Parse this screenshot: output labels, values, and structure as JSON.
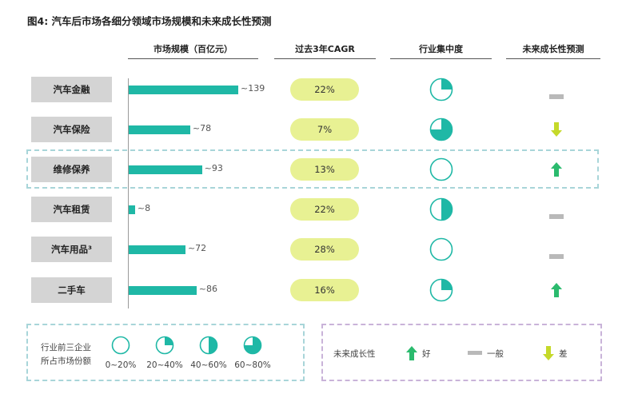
{
  "title": "图4: 汽车后市场各细分领域市场规模和未来成长性预测",
  "headers": {
    "market_size": "市场规模（百亿元）",
    "cagr": "过去3年CAGR",
    "concentration": "行业集中度",
    "growth": "未来成长性预测"
  },
  "colors": {
    "bar": "#1fb8a6",
    "cagr_pill": "#e8f193",
    "category_box": "#d4d4d4",
    "arrow_good": "#2bbb6e",
    "arrow_bad": "#c5d92a",
    "dash_neutral": "#b9b9b9"
  },
  "legend": {
    "concentration_title_line1": "行业前三企业",
    "concentration_title_line2": "所占市场份额",
    "concentration_levels": [
      "0~20%",
      "20~40%",
      "40~60%",
      "60~80%"
    ],
    "growth_title": "未来成长性",
    "growth_good": "好",
    "growth_neutral": "一般",
    "growth_bad": "差"
  },
  "chart_data": {
    "type": "table",
    "rows": [
      {
        "category": "汽车金融",
        "market_size": 139,
        "market_size_label": "~139",
        "cagr": "22%",
        "concentration": "20~40%",
        "growth": "一般"
      },
      {
        "category": "汽车保险",
        "market_size": 78,
        "market_size_label": "~78",
        "cagr": "7%",
        "concentration": "60~80%",
        "growth": "差"
      },
      {
        "category": "维修保养",
        "market_size": 93,
        "market_size_label": "~93",
        "cagr": "13%",
        "concentration": "0~20%",
        "growth": "好"
      },
      {
        "category": "汽车租赁",
        "market_size": 8,
        "market_size_label": "~8",
        "cagr": "22%",
        "concentration": "40~60%",
        "growth": "一般"
      },
      {
        "category": "汽车用品³",
        "market_size": 72,
        "market_size_label": "~72",
        "cagr": "28%",
        "concentration": "0~20%",
        "growth": "一般"
      },
      {
        "category": "二手车",
        "market_size": 86,
        "market_size_label": "~86",
        "cagr": "16%",
        "concentration": "20~40%",
        "growth": "好"
      }
    ]
  }
}
